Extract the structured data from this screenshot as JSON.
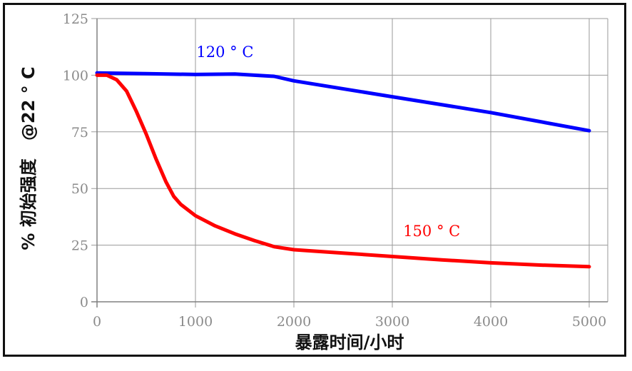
{
  "chart_data": {
    "type": "line",
    "xlabel": "暴露时间/小时",
    "ylabel": "% 初始强度   @22 ° C",
    "xlim": [
      0,
      5000
    ],
    "ylim": [
      0,
      125
    ],
    "x_ticks": [
      0,
      1000,
      2000,
      3000,
      4000,
      5000
    ],
    "y_ticks": [
      0,
      25,
      50,
      75,
      100,
      125
    ],
    "grid": true,
    "colors": {
      "grid": "#9a9a9a",
      "axis": "#808080"
    },
    "series": [
      {
        "name": "120 ° C",
        "color": "#0000ff",
        "label_at": [
          1300,
          108
        ],
        "points": [
          [
            0,
            101
          ],
          [
            500,
            100.7
          ],
          [
            1000,
            100.3
          ],
          [
            1400,
            100.5
          ],
          [
            1800,
            99.5
          ],
          [
            2000,
            97.5
          ],
          [
            3000,
            90.5
          ],
          [
            4000,
            83.5
          ],
          [
            5000,
            75.5
          ]
        ]
      },
      {
        "name": "150 ° C",
        "color": "#ff0000",
        "label_at": [
          3400,
          29
        ],
        "points": [
          [
            0,
            100
          ],
          [
            100,
            100
          ],
          [
            200,
            98
          ],
          [
            300,
            93
          ],
          [
            400,
            84
          ],
          [
            500,
            74
          ],
          [
            600,
            63
          ],
          [
            700,
            53
          ],
          [
            780,
            46.5
          ],
          [
            850,
            43
          ],
          [
            1000,
            38
          ],
          [
            1200,
            33.5
          ],
          [
            1400,
            30
          ],
          [
            1600,
            27
          ],
          [
            1800,
            24.3
          ],
          [
            2000,
            23
          ],
          [
            2500,
            21.5
          ],
          [
            3000,
            20
          ],
          [
            3500,
            18.5
          ],
          [
            4000,
            17.2
          ],
          [
            4500,
            16.2
          ],
          [
            5000,
            15.5
          ]
        ]
      }
    ]
  }
}
